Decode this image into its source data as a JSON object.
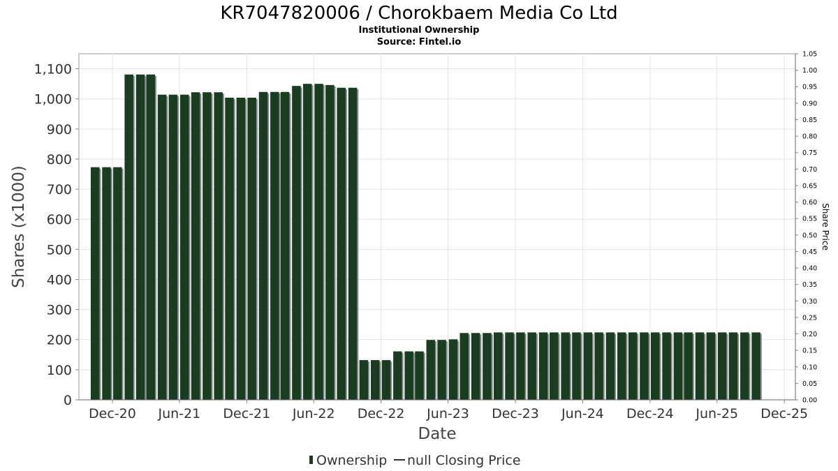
{
  "chart_data": {
    "type": "bar",
    "title": "KR7047820006 / Chorokbaem Media Co Ltd",
    "subtitle_lines": [
      "Institutional Ownership",
      "Source: Fintel.io"
    ],
    "xlabel": "Date",
    "ylabel": "Shares (x1000)",
    "y2label": "Share Price",
    "ylim": [
      0,
      1150
    ],
    "y2lim": [
      0,
      1.05
    ],
    "xlim": [
      "2020-09-01",
      "2025-12-31"
    ],
    "yticks": [
      0,
      100,
      200,
      300,
      400,
      500,
      600,
      700,
      800,
      900,
      1000,
      1100
    ],
    "yticklabels": [
      "0",
      "100",
      "200",
      "300",
      "400",
      "500",
      "600",
      "700",
      "800",
      "900",
      "1,000",
      "1,100"
    ],
    "y2ticks": [
      0,
      0.05,
      0.1,
      0.15,
      0.2,
      0.25,
      0.3,
      0.35,
      0.4,
      0.45,
      0.5,
      0.55,
      0.6,
      0.65,
      0.7,
      0.75,
      0.8,
      0.85,
      0.9,
      0.95,
      1.0,
      1.05
    ],
    "y2ticklabels": [
      "0.00",
      "0.05",
      "0.10",
      "0.15",
      "0.20",
      "0.25",
      "0.30",
      "0.35",
      "0.40",
      "0.45",
      "0.50",
      "0.55",
      "0.60",
      "0.65",
      "0.70",
      "0.75",
      "0.80",
      "0.85",
      "0.90",
      "0.95",
      "1.00",
      "1.05"
    ],
    "xticks": [
      {
        "label": "Dec-20",
        "date": "2020-12-01"
      },
      {
        "label": "Jun-21",
        "date": "2021-06-01"
      },
      {
        "label": "Dec-21",
        "date": "2021-12-01"
      },
      {
        "label": "Jun-22",
        "date": "2022-06-01"
      },
      {
        "label": "Dec-22",
        "date": "2022-12-01"
      },
      {
        "label": "Jun-23",
        "date": "2023-06-01"
      },
      {
        "label": "Dec-23",
        "date": "2023-12-01"
      },
      {
        "label": "Jun-24",
        "date": "2024-06-01"
      },
      {
        "label": "Dec-24",
        "date": "2024-12-01"
      },
      {
        "label": "Jun-25",
        "date": "2025-06-01"
      },
      {
        "label": "Dec-25",
        "date": "2025-12-01"
      }
    ],
    "grid": true,
    "legend_position": "bottom-center",
    "series": [
      {
        "name": "Ownership",
        "color": "#1a3d21",
        "shadow_color": "#8a918b",
        "points": [
          {
            "date": "2020-10-15",
            "value": 773
          },
          {
            "date": "2020-11-15",
            "value": 773
          },
          {
            "date": "2020-12-15",
            "value": 773
          },
          {
            "date": "2021-01-15",
            "value": 1081
          },
          {
            "date": "2021-02-15",
            "value": 1081
          },
          {
            "date": "2021-03-15",
            "value": 1081
          },
          {
            "date": "2021-04-15",
            "value": 1014
          },
          {
            "date": "2021-05-15",
            "value": 1014
          },
          {
            "date": "2021-06-15",
            "value": 1014
          },
          {
            "date": "2021-07-15",
            "value": 1022
          },
          {
            "date": "2021-08-15",
            "value": 1022
          },
          {
            "date": "2021-09-15",
            "value": 1022
          },
          {
            "date": "2021-10-15",
            "value": 1004
          },
          {
            "date": "2021-11-15",
            "value": 1004
          },
          {
            "date": "2021-12-15",
            "value": 1004
          },
          {
            "date": "2022-01-15",
            "value": 1023
          },
          {
            "date": "2022-02-15",
            "value": 1023
          },
          {
            "date": "2022-03-15",
            "value": 1023
          },
          {
            "date": "2022-04-15",
            "value": 1043
          },
          {
            "date": "2022-05-15",
            "value": 1050
          },
          {
            "date": "2022-06-15",
            "value": 1050
          },
          {
            "date": "2022-07-15",
            "value": 1046
          },
          {
            "date": "2022-08-15",
            "value": 1037
          },
          {
            "date": "2022-09-15",
            "value": 1037
          },
          {
            "date": "2022-10-15",
            "value": 132
          },
          {
            "date": "2022-11-15",
            "value": 132
          },
          {
            "date": "2022-12-15",
            "value": 132
          },
          {
            "date": "2023-01-15",
            "value": 161
          },
          {
            "date": "2023-02-15",
            "value": 161
          },
          {
            "date": "2023-03-15",
            "value": 161
          },
          {
            "date": "2023-04-15",
            "value": 199
          },
          {
            "date": "2023-05-15",
            "value": 199
          },
          {
            "date": "2023-06-15",
            "value": 201
          },
          {
            "date": "2023-07-15",
            "value": 222
          },
          {
            "date": "2023-08-15",
            "value": 222
          },
          {
            "date": "2023-09-15",
            "value": 222
          },
          {
            "date": "2023-10-15",
            "value": 224
          },
          {
            "date": "2023-11-15",
            "value": 224
          },
          {
            "date": "2023-12-15",
            "value": 224
          },
          {
            "date": "2024-01-15",
            "value": 224
          },
          {
            "date": "2024-02-15",
            "value": 224
          },
          {
            "date": "2024-03-15",
            "value": 224
          },
          {
            "date": "2024-04-15",
            "value": 224
          },
          {
            "date": "2024-05-15",
            "value": 224
          },
          {
            "date": "2024-06-15",
            "value": 224
          },
          {
            "date": "2024-07-15",
            "value": 224
          },
          {
            "date": "2024-08-15",
            "value": 224
          },
          {
            "date": "2024-09-15",
            "value": 224
          },
          {
            "date": "2024-10-15",
            "value": 224
          },
          {
            "date": "2024-11-15",
            "value": 224
          },
          {
            "date": "2024-12-15",
            "value": 224
          },
          {
            "date": "2025-01-15",
            "value": 224
          },
          {
            "date": "2025-02-15",
            "value": 224
          },
          {
            "date": "2025-03-15",
            "value": 224
          },
          {
            "date": "2025-04-15",
            "value": 224
          },
          {
            "date": "2025-05-15",
            "value": 224
          },
          {
            "date": "2025-06-15",
            "value": 224
          },
          {
            "date": "2025-07-15",
            "value": 224
          },
          {
            "date": "2025-08-15",
            "value": 224
          },
          {
            "date": "2025-09-15",
            "value": 224
          }
        ]
      },
      {
        "name": "null Closing Price",
        "color": "#333333",
        "points": []
      }
    ]
  }
}
